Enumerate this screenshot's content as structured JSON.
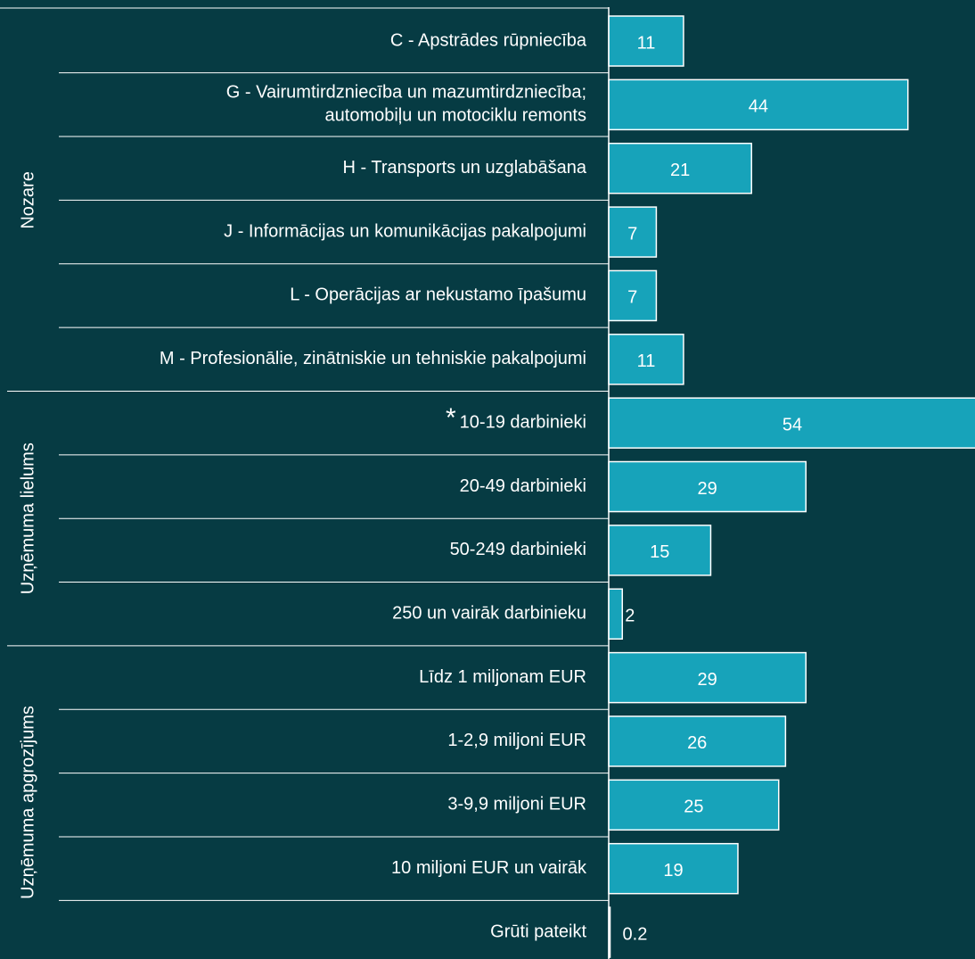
{
  "chart_data": {
    "type": "bar",
    "orientation": "horizontal",
    "color": "#17a3ba",
    "background": "#063b43",
    "annotation": "*",
    "groups": [
      {
        "name": "Nozare",
        "categories": [
          "C - Apstrādes rūpniecība",
          [
            "G - Vairumtirdzniecība un mazumtirdzniecība;",
            "automobiļu un motociklu remonts"
          ],
          "H - Transports un uzglabāšana",
          "J - Informācijas un komunikācijas pakalpojumi",
          "L - Operācijas ar nekustamo īpašumu",
          "M - Profesionālie, zinātniskie un tehniskie pakalpojumi"
        ],
        "values": [
          11,
          44,
          21,
          7,
          7,
          11
        ]
      },
      {
        "name": "Uzņēmuma lielums",
        "categories": [
          "10-19 darbinieki",
          "20-49 darbinieki",
          "50-249 darbinieki",
          "250 un vairāk darbinieku"
        ],
        "values": [
          54,
          29,
          15,
          2
        ]
      },
      {
        "name": "Uzņēmuma apgrozījums",
        "categories": [
          "Līdz 1 miljonam EUR",
          "1-2,9 miljoni EUR",
          "3-9,9 miljoni EUR",
          "10 miljoni EUR un vairāk",
          "Grūti pateikt"
        ],
        "values": [
          29,
          26,
          25,
          19,
          0.2
        ]
      }
    ]
  }
}
